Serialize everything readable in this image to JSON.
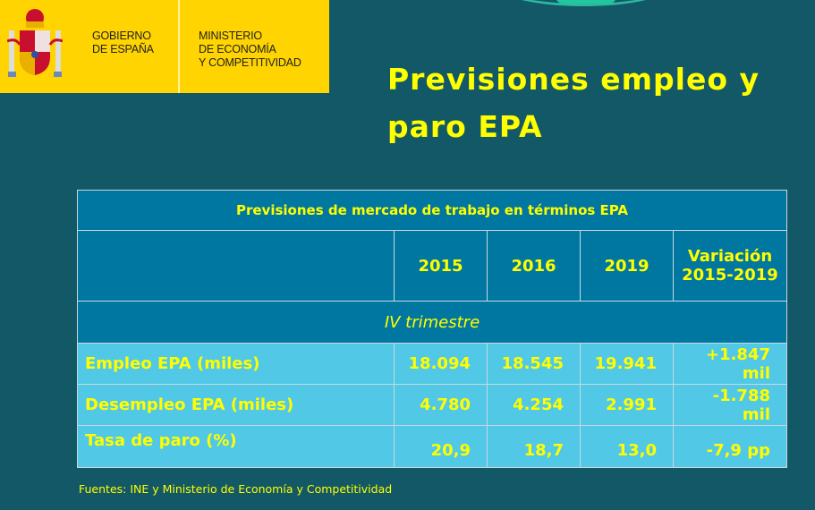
{
  "logo": {
    "gov_line1": "GOBIERNO",
    "gov_line2": "DE ESPAÑA",
    "min_line1": "MINISTERIO",
    "min_line2": "DE ECONOMÍA",
    "min_line3": "Y COMPETITIVIDAD"
  },
  "title_line1": "Previsiones empleo y",
  "title_line2": "paro EPA",
  "table": {
    "caption": "Previsiones de mercado de trabajo en términos EPA",
    "headers": [
      "",
      "2015",
      "2016",
      "2019",
      "Variación 2015-2019"
    ],
    "header_var_line1": "Variación",
    "header_var_line2": "2015-2019",
    "section": "IV trimestre",
    "rows": [
      {
        "label": "Empleo EPA (miles)",
        "values": [
          "18.094",
          "18.545",
          "19.941",
          "+1.847 mil"
        ]
      },
      {
        "label": "Desempleo EPA (miles)",
        "values": [
          "4.780",
          "4.254",
          "2.991",
          "-1.788 mil"
        ]
      },
      {
        "label": "Tasa de paro (%)",
        "values": [
          "20,9",
          "18,7",
          "13,0",
          "-7,9 pp"
        ]
      }
    ]
  },
  "source": "Fuentes: INE y Ministerio de Economía y Competitividad",
  "colors": {
    "background": "#135866",
    "logo_bg": "#ffd400",
    "text": "#ffff00",
    "table_dark": "#0077a0",
    "table_light": "#50c8e6"
  }
}
